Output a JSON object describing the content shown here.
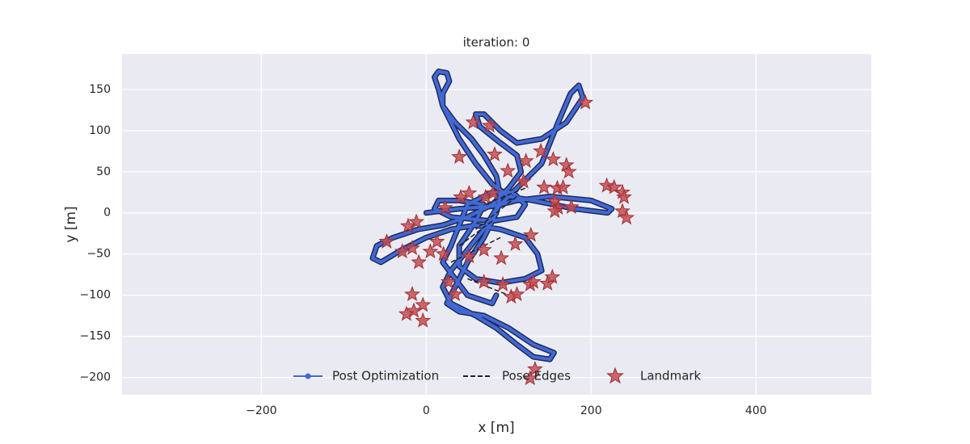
{
  "chart_data": {
    "type": "line",
    "title": "iteration: 0",
    "x_label": "x [m]",
    "y_label": "y [m]",
    "xlim": [
      -369,
      540
    ],
    "ylim": [
      -221,
      193
    ],
    "xticks": [
      {
        "value": -200,
        "label": "−200"
      },
      0,
      200,
      400
    ],
    "yticks": [
      {
        "value": -200,
        "label": "−200"
      },
      {
        "value": -150,
        "label": "−150"
      },
      {
        "value": -100,
        "label": "−100"
      },
      {
        "value": -50,
        "label": "−50"
      },
      0,
      50,
      100,
      150
    ],
    "grid": true,
    "legend": "lower center",
    "series": [
      {
        "name": "Post Optimization",
        "color": "#4169d6",
        "style": "line",
        "x": [
          0,
          40,
          80,
          110,
          150,
          200,
          225,
          220,
          180,
          130,
          100,
          80,
          60,
          40,
          30,
          20,
          15,
          10,
          15,
          25,
          28,
          20,
          20,
          35,
          55,
          70,
          85,
          90,
          85,
          70,
          50,
          35,
          25,
          40,
          70,
          100,
          130,
          155,
          150,
          130,
          110,
          85,
          60,
          30,
          20,
          30,
          50,
          70,
          85,
          110,
          140,
          160,
          175,
          185,
          190,
          170,
          140,
          110,
          90,
          70,
          60,
          65,
          90,
          110,
          115,
          100,
          80,
          50,
          20,
          -10,
          -40,
          -60,
          -65,
          -55,
          -30,
          0,
          30,
          60,
          90,
          120,
          135,
          140,
          120,
          90,
          60,
          40,
          40,
          60,
          70,
          40,
          15,
          10,
          30,
          80,
          110,
          120,
          105,
          80,
          50,
          30,
          20,
          50,
          80,
          85
        ],
        "y": [
          0,
          5,
          8,
          15,
          20,
          15,
          5,
          0,
          5,
          15,
          20,
          35,
          60,
          90,
          110,
          130,
          150,
          165,
          172,
          170,
          160,
          145,
          130,
          110,
          90,
          70,
          45,
          20,
          0,
          -30,
          -60,
          -90,
          -110,
          -120,
          -125,
          -140,
          -160,
          -170,
          -178,
          -175,
          -160,
          -140,
          -125,
          -110,
          -90,
          -70,
          -45,
          -20,
          5,
          30,
          60,
          110,
          145,
          155,
          140,
          110,
          90,
          85,
          100,
          120,
          120,
          105,
          85,
          70,
          50,
          30,
          10,
          -5,
          -15,
          -20,
          -30,
          -40,
          -55,
          -60,
          -45,
          -30,
          -20,
          -15,
          -20,
          -30,
          -50,
          -70,
          -80,
          -85,
          -80,
          -65,
          -40,
          -10,
          10,
          15,
          15,
          5,
          -5,
          -10,
          -5,
          10,
          25,
          25,
          10,
          -40,
          -60,
          -100,
          -110,
          -100
        ]
      },
      {
        "name": "Pose Edges",
        "color": "#222222",
        "style": "dashed",
        "x": [
          40,
          80,
          110,
          60,
          30,
          90,
          120,
          70,
          50,
          100
        ],
        "y": [
          -40,
          -10,
          20,
          -20,
          -60,
          -30,
          30,
          10,
          -80,
          -100
        ]
      },
      {
        "name": "Landmark",
        "color": "#c44e52",
        "style": "star",
        "x": [
          193,
          57,
          77,
          40,
          83,
          99,
          121,
          139,
          154,
          170,
          173,
          118,
          143,
          159,
          166,
          42,
          52,
          72,
          81,
          156,
          160,
          176,
          156,
          219,
          228,
          238,
          240,
          238,
          243,
          23,
          -12,
          -22,
          -48,
          -29,
          -17,
          -9,
          5,
          13,
          21,
          52,
          70,
          91,
          108,
          127,
          27,
          70,
          93,
          103,
          110,
          126,
          130,
          147,
          153,
          -17,
          -4,
          -15,
          -24,
          -4,
          126,
          132,
          35
        ],
        "y": [
          134,
          110,
          106,
          68,
          71,
          51,
          63,
          75,
          65,
          58,
          50,
          38,
          31,
          30,
          31,
          19,
          24,
          19,
          24,
          14,
          6,
          7,
          2,
          33,
          31,
          25,
          19,
          2,
          -6,
          6,
          -11,
          -16,
          -35,
          -47,
          -43,
          -60,
          -47,
          -35,
          -50,
          -53,
          -45,
          -55,
          -38,
          -27,
          -84,
          -84,
          -87,
          -102,
          -99,
          -87,
          -84,
          -86,
          -78,
          -99,
          -112,
          -119,
          -123,
          -131,
          -201,
          -190,
          -99
        ]
      }
    ]
  }
}
